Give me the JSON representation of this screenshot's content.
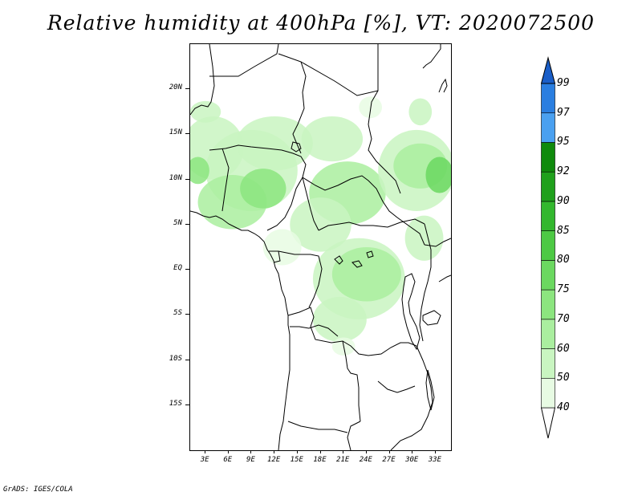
{
  "title": "Relative humidity at 400hPa [%], VT: 2020072500",
  "credit": "GrADS: IGES/COLA",
  "map": {
    "projection": "latlon",
    "lon_range": [
      1,
      35
    ],
    "lat_range": [
      -20,
      25
    ],
    "lat_labels": [
      {
        "lat": 20,
        "text": "20N"
      },
      {
        "lat": 15,
        "text": "15N"
      },
      {
        "lat": 10,
        "text": "10N"
      },
      {
        "lat": 5,
        "text": "5N"
      },
      {
        "lat": 0,
        "text": "EQ"
      },
      {
        "lat": -5,
        "text": "5S"
      },
      {
        "lat": -10,
        "text": "10S"
      },
      {
        "lat": -15,
        "text": "15S"
      }
    ],
    "lon_labels": [
      {
        "lon": 3,
        "text": "3E"
      },
      {
        "lon": 6,
        "text": "6E"
      },
      {
        "lon": 9,
        "text": "9E"
      },
      {
        "lon": 12,
        "text": "12E"
      },
      {
        "lon": 15,
        "text": "15E"
      },
      {
        "lon": 18,
        "text": "18E"
      },
      {
        "lon": 21,
        "text": "21E"
      },
      {
        "lon": 24,
        "text": "24E"
      },
      {
        "lon": 27,
        "text": "27E"
      },
      {
        "lon": 30,
        "text": "30E"
      },
      {
        "lon": 33,
        "text": "33E"
      }
    ]
  },
  "colorbar": {
    "levels": [
      "40",
      "50",
      "60",
      "70",
      "75",
      "80",
      "85",
      "90",
      "92",
      "95",
      "97",
      "99"
    ],
    "colors": [
      "#e7fbe3",
      "#c9f5c1",
      "#aaee9f",
      "#8ce57f",
      "#6bd860",
      "#4dc944",
      "#33b72e",
      "#1fa01c",
      "#0f8a0c",
      "#4aa0f0",
      "#2a7ee0",
      "#1a5ec8"
    ],
    "under_color": "#ffffff"
  },
  "humidity_blobs": [
    {
      "lon": 4.0,
      "lat": 13.5,
      "rlon": 4.0,
      "rlat": 3.5,
      "level": 1
    },
    {
      "lon": 9.0,
      "lat": 11.0,
      "rlon": 6.0,
      "rlat": 4.5,
      "level": 1
    },
    {
      "lon": 12.0,
      "lat": 14.0,
      "rlon": 5.0,
      "rlat": 3.0,
      "level": 1
    },
    {
      "lon": 6.5,
      "lat": 7.5,
      "rlon": 4.5,
      "rlat": 3.0,
      "level": 2
    },
    {
      "lon": 3.0,
      "lat": 17.5,
      "rlon": 2.0,
      "rlat": 1.2,
      "level": 1
    },
    {
      "lon": 10.5,
      "lat": 9.0,
      "rlon": 3.0,
      "rlat": 2.2,
      "level": 3
    },
    {
      "lon": 2.0,
      "lat": 11.0,
      "rlon": 1.5,
      "rlat": 1.5,
      "level": 3
    },
    {
      "lon": 19.5,
      "lat": 14.5,
      "rlon": 4.0,
      "rlat": 2.5,
      "level": 1
    },
    {
      "lon": 21.5,
      "lat": 8.5,
      "rlon": 5.0,
      "rlat": 3.5,
      "level": 2
    },
    {
      "lon": 18.0,
      "lat": 5.0,
      "rlon": 4.0,
      "rlat": 3.0,
      "level": 1
    },
    {
      "lon": 30.5,
      "lat": 11.0,
      "rlon": 5.0,
      "rlat": 4.5,
      "level": 1
    },
    {
      "lon": 31.0,
      "lat": 11.5,
      "rlon": 3.5,
      "rlat": 2.5,
      "level": 2
    },
    {
      "lon": 33.5,
      "lat": 10.5,
      "rlon": 1.8,
      "rlat": 2.0,
      "level": 4
    },
    {
      "lon": 31.0,
      "lat": 17.5,
      "rlon": 1.5,
      "rlat": 1.5,
      "level": 1
    },
    {
      "lon": 24.5,
      "lat": 18.0,
      "rlon": 1.5,
      "rlat": 1.2,
      "level": 0
    },
    {
      "lon": 23.0,
      "lat": -1.0,
      "rlon": 6.0,
      "rlat": 4.5,
      "level": 1
    },
    {
      "lon": 24.0,
      "lat": -0.5,
      "rlon": 4.5,
      "rlat": 3.0,
      "level": 2
    },
    {
      "lon": 20.5,
      "lat": -5.5,
      "rlon": 3.5,
      "rlat": 2.5,
      "level": 1
    },
    {
      "lon": 31.5,
      "lat": 3.5,
      "rlon": 2.5,
      "rlat": 2.5,
      "level": 1
    },
    {
      "lon": 13.0,
      "lat": 2.5,
      "rlon": 2.5,
      "rlat": 2.0,
      "level": 0
    },
    {
      "lon": 21.0,
      "lat": -8.5,
      "rlon": 1.5,
      "rlat": 1.0,
      "level": 0
    }
  ]
}
